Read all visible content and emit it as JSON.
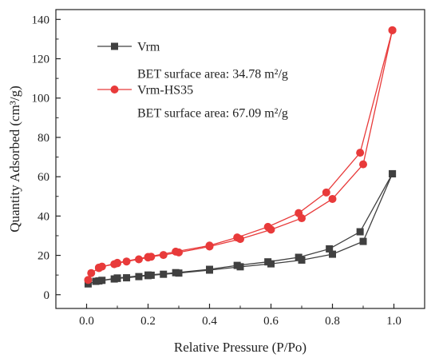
{
  "chart_data": {
    "type": "line",
    "title": "",
    "xlabel": "Relative Pressure (P/Po)",
    "ylabel": "Quantity Adsorbed (cm³/g)",
    "xlim": [
      -0.1,
      1.1
    ],
    "ylim": [
      -7,
      145
    ],
    "x_ticks": [
      "0.0",
      "0.2",
      "0.4",
      "0.6",
      "0.8",
      "1.0"
    ],
    "y_ticks": [
      "0",
      "20",
      "40",
      "60",
      "80",
      "100",
      "120",
      "140"
    ],
    "grid": false,
    "legend_position": "top-left",
    "series": [
      {
        "name": "Vrm",
        "note": "BET surface area: 34.78 m²/g",
        "color": "#404040",
        "marker": "square",
        "adsorption": [
          [
            0.005,
            5.5
          ],
          [
            0.03,
            6.8
          ],
          [
            0.05,
            7.3
          ],
          [
            0.09,
            8.0
          ],
          [
            0.1,
            8.3
          ],
          [
            0.13,
            8.6
          ],
          [
            0.17,
            9.2
          ],
          [
            0.2,
            9.7
          ],
          [
            0.21,
            9.9
          ],
          [
            0.25,
            10.4
          ],
          [
            0.3,
            11.0
          ],
          [
            0.4,
            12.5
          ],
          [
            0.5,
            14.2
          ],
          [
            0.6,
            15.7
          ],
          [
            0.7,
            17.6
          ],
          [
            0.8,
            20.6
          ],
          [
            0.9,
            27.1
          ],
          [
            0.995,
            61.5
          ]
        ],
        "desorption": [
          [
            0.995,
            61.5
          ],
          [
            0.89,
            32.0
          ],
          [
            0.79,
            23.3
          ],
          [
            0.69,
            19.0
          ],
          [
            0.59,
            16.7
          ],
          [
            0.49,
            14.9
          ],
          [
            0.4,
            12.9
          ],
          [
            0.29,
            11.2
          ],
          [
            0.2,
            10.0
          ],
          [
            0.1,
            8.5
          ],
          [
            0.04,
            7.0
          ]
        ]
      },
      {
        "name": "Vrm-HS35",
        "note": "BET surface area: 67.09 m²/g",
        "color": "#e83a3a",
        "marker": "circle",
        "adsorption": [
          [
            0.005,
            7.5
          ],
          [
            0.015,
            11.0
          ],
          [
            0.04,
            13.5
          ],
          [
            0.05,
            14.3
          ],
          [
            0.09,
            15.5
          ],
          [
            0.1,
            16.0
          ],
          [
            0.13,
            16.9
          ],
          [
            0.17,
            18.0
          ],
          [
            0.2,
            18.9
          ],
          [
            0.21,
            19.3
          ],
          [
            0.25,
            20.2
          ],
          [
            0.3,
            21.5
          ],
          [
            0.4,
            24.5
          ],
          [
            0.5,
            28.3
          ],
          [
            0.6,
            33.1
          ],
          [
            0.7,
            38.9
          ],
          [
            0.8,
            48.7
          ],
          [
            0.9,
            66.3
          ],
          [
            0.995,
            134.5
          ]
        ],
        "desorption": [
          [
            0.995,
            134.5
          ],
          [
            0.89,
            72.2
          ],
          [
            0.78,
            52.0
          ],
          [
            0.69,
            41.5
          ],
          [
            0.59,
            34.5
          ],
          [
            0.49,
            29.1
          ],
          [
            0.4,
            25.0
          ],
          [
            0.29,
            21.9
          ],
          [
            0.2,
            19.2
          ],
          [
            0.1,
            16.2
          ],
          [
            0.04,
            13.8
          ]
        ]
      }
    ]
  }
}
